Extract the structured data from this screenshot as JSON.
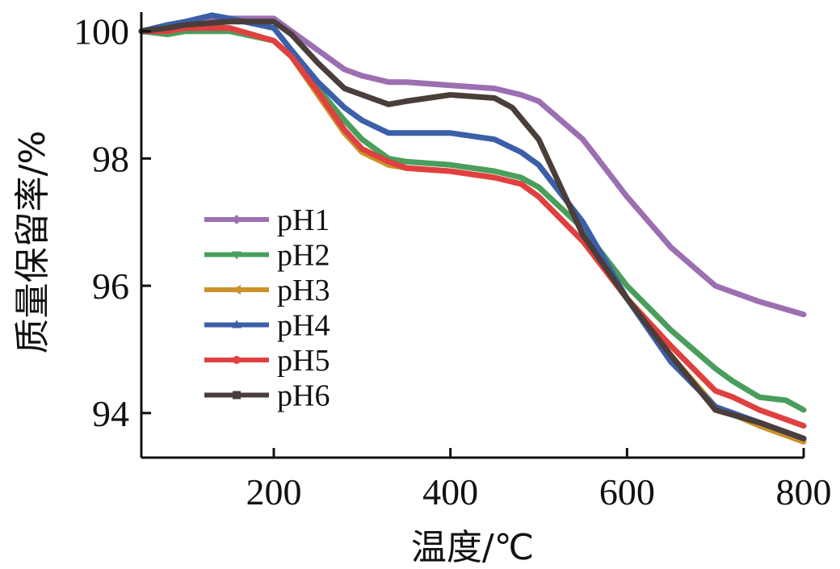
{
  "chart_data": {
    "type": "line",
    "xlabel": "温度/℃",
    "ylabel": "质量保留率/%",
    "xlim": [
      50,
      800
    ],
    "ylim": [
      93.3,
      100.3
    ],
    "xticks": [
      200,
      400,
      600,
      800
    ],
    "yticks": [
      94,
      96,
      98,
      100
    ],
    "legend_position": "center-left",
    "grid": false,
    "series": [
      {
        "name": "pH1",
        "color": "#9b6fb2",
        "marker": "diamond",
        "x": [
          50,
          80,
          100,
          150,
          200,
          220,
          250,
          280,
          300,
          330,
          350,
          400,
          450,
          480,
          500,
          550,
          600,
          650,
          700,
          750,
          800
        ],
        "y": [
          100.0,
          100.0,
          100.1,
          100.2,
          100.2,
          100.0,
          99.7,
          99.4,
          99.3,
          99.2,
          99.2,
          99.15,
          99.1,
          99.0,
          98.9,
          98.3,
          97.4,
          96.6,
          96.0,
          95.75,
          95.55
        ]
      },
      {
        "name": "pH2",
        "color": "#4a9e5c",
        "marker": "triangle-down",
        "x": [
          50,
          80,
          100,
          150,
          200,
          220,
          250,
          280,
          300,
          330,
          350,
          400,
          450,
          480,
          500,
          550,
          600,
          650,
          700,
          720,
          750,
          780,
          800
        ],
        "y": [
          100.0,
          99.95,
          100.0,
          100.0,
          99.85,
          99.6,
          99.1,
          98.6,
          98.3,
          98.0,
          97.95,
          97.9,
          97.8,
          97.7,
          97.55,
          96.9,
          96.0,
          95.3,
          94.7,
          94.5,
          94.25,
          94.2,
          94.05
        ]
      },
      {
        "name": "pH3",
        "color": "#c9922a",
        "marker": "triangle-left",
        "x": [
          50,
          80,
          100,
          150,
          200,
          220,
          250,
          280,
          300,
          330,
          350,
          400,
          450,
          480,
          500,
          550,
          600,
          650,
          700,
          750,
          800
        ],
        "y": [
          100.0,
          100.05,
          100.1,
          100.05,
          99.85,
          99.6,
          99.0,
          98.4,
          98.1,
          97.9,
          97.85,
          97.8,
          97.7,
          97.6,
          97.4,
          96.7,
          95.8,
          94.9,
          94.1,
          93.8,
          93.55
        ]
      },
      {
        "name": "pH4",
        "color": "#3b5fa8",
        "marker": "triangle-up",
        "x": [
          50,
          80,
          100,
          130,
          150,
          200,
          220,
          250,
          280,
          300,
          330,
          350,
          400,
          450,
          480,
          500,
          550,
          600,
          650,
          700,
          750,
          800
        ],
        "y": [
          100.0,
          100.1,
          100.15,
          100.25,
          100.2,
          100.05,
          99.7,
          99.2,
          98.8,
          98.6,
          98.4,
          98.4,
          98.4,
          98.3,
          98.1,
          97.9,
          97.0,
          95.8,
          94.8,
          94.1,
          93.85,
          93.6
        ]
      },
      {
        "name": "pH5",
        "color": "#e04040",
        "marker": "circle",
        "x": [
          50,
          80,
          100,
          150,
          200,
          220,
          250,
          280,
          300,
          330,
          350,
          400,
          450,
          480,
          500,
          550,
          600,
          650,
          700,
          720,
          750,
          780,
          800
        ],
        "y": [
          100.0,
          100.0,
          100.05,
          100.05,
          99.85,
          99.6,
          99.05,
          98.45,
          98.15,
          97.95,
          97.85,
          97.8,
          97.7,
          97.6,
          97.4,
          96.7,
          95.8,
          95.05,
          94.35,
          94.25,
          94.05,
          93.9,
          93.8
        ]
      },
      {
        "name": "pH6",
        "color": "#4a3d3a",
        "marker": "square",
        "x": [
          50,
          80,
          100,
          150,
          200,
          220,
          250,
          280,
          300,
          330,
          350,
          400,
          450,
          470,
          500,
          550,
          600,
          650,
          700,
          750,
          800
        ],
        "y": [
          100.0,
          100.05,
          100.1,
          100.15,
          100.15,
          99.95,
          99.5,
          99.1,
          99.0,
          98.85,
          98.9,
          99.0,
          98.95,
          98.8,
          98.3,
          96.8,
          95.8,
          94.9,
          94.05,
          93.85,
          93.6
        ]
      }
    ]
  }
}
